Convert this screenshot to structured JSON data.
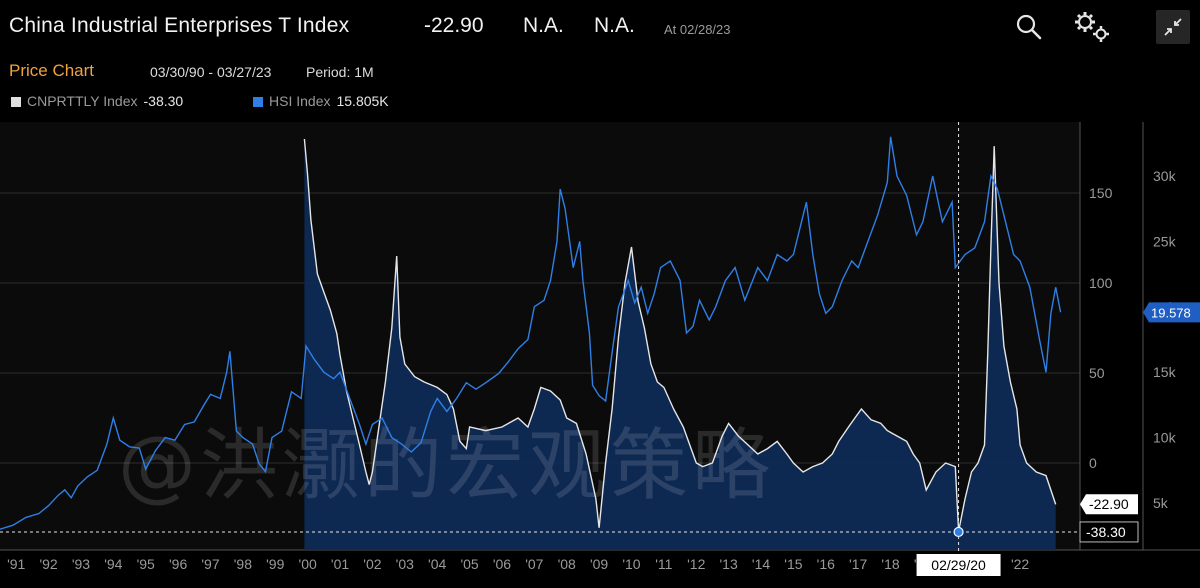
{
  "header": {
    "title": "China Industrial Enterprises T Index",
    "last_value": "-22.90",
    "net_change": "N.A.",
    "pct_change": "N.A.",
    "as_of": "At 02/28/23"
  },
  "subheader": {
    "chart_name": "Price Chart",
    "date_range": "03/30/90 - 03/27/23",
    "period": "Period: 1M"
  },
  "legend": [
    {
      "name": "CNPRTTLY Index",
      "value": "-38.30",
      "color": "#e0e0e0"
    },
    {
      "name": "HSI Index",
      "value": "15.805K",
      "color": "#2f7fe6"
    }
  ],
  "watermark": "@洪灏的宏观策略",
  "chart_data": {
    "type": "line",
    "x_tick_labels": [
      "'91",
      "'92",
      "'93",
      "'94",
      "'95",
      "'96",
      "'97",
      "'98",
      "'99",
      "'00",
      "'01",
      "'02",
      "'03",
      "'04",
      "'05",
      "'06",
      "'07",
      "'08",
      "'09",
      "'10",
      "'11",
      "'12",
      "'13",
      "'14",
      "'15",
      "'16",
      "'17",
      "'18",
      "'19",
      "'20",
      "'21",
      "'22"
    ],
    "crosshair_label": "02/29/20",
    "left_axis": {
      "ticks": [
        "150",
        "100",
        "50",
        "0"
      ],
      "range": [
        -38,
        180
      ]
    },
    "right_axis": {
      "ticks": [
        "30k",
        "25k",
        "20k",
        "15k",
        "10k",
        "5k"
      ],
      "range": [
        2000,
        33500
      ]
    },
    "markers": {
      "cnprttly_last": "-22.90",
      "cnprttly_cursor": "-38.30",
      "hsi_last": "19.578"
    },
    "series": [
      {
        "name": "CNPRTTLY Index",
        "axis": "left",
        "color": "#e6e6e6",
        "fill": "#0e2a55",
        "points": [
          [
            1999.9,
            180
          ],
          [
            2000.0,
            160
          ],
          [
            2000.1,
            135
          ],
          [
            2000.3,
            105
          ],
          [
            2000.5,
            95
          ],
          [
            2000.7,
            85
          ],
          [
            2000.9,
            72
          ],
          [
            2001.0,
            60
          ],
          [
            2001.2,
            40
          ],
          [
            2001.4,
            25
          ],
          [
            2001.6,
            10
          ],
          [
            2001.8,
            -5
          ],
          [
            2001.9,
            -12
          ],
          [
            2002.0,
            -5
          ],
          [
            2002.2,
            20
          ],
          [
            2002.4,
            45
          ],
          [
            2002.6,
            75
          ],
          [
            2002.75,
            115
          ],
          [
            2002.85,
            70
          ],
          [
            2003.0,
            55
          ],
          [
            2003.3,
            48
          ],
          [
            2003.6,
            45
          ],
          [
            2004.0,
            42
          ],
          [
            2004.3,
            38
          ],
          [
            2004.5,
            30
          ],
          [
            2004.7,
            12
          ],
          [
            2004.9,
            8
          ],
          [
            2005.0,
            20
          ],
          [
            2005.5,
            18
          ],
          [
            2006.0,
            20
          ],
          [
            2006.5,
            25
          ],
          [
            2006.8,
            20
          ],
          [
            2007.0,
            30
          ],
          [
            2007.2,
            42
          ],
          [
            2007.5,
            40
          ],
          [
            2007.8,
            35
          ],
          [
            2008.0,
            25
          ],
          [
            2008.3,
            22
          ],
          [
            2008.6,
            5
          ],
          [
            2008.9,
            -20
          ],
          [
            2009.0,
            -36
          ],
          [
            2009.2,
            0
          ],
          [
            2009.4,
            30
          ],
          [
            2009.6,
            70
          ],
          [
            2009.8,
            100
          ],
          [
            2010.0,
            120
          ],
          [
            2010.2,
            90
          ],
          [
            2010.4,
            75
          ],
          [
            2010.6,
            55
          ],
          [
            2010.8,
            45
          ],
          [
            2011.0,
            42
          ],
          [
            2011.3,
            30
          ],
          [
            2011.6,
            20
          ],
          [
            2011.8,
            10
          ],
          [
            2012.0,
            0
          ],
          [
            2012.2,
            -2
          ],
          [
            2012.5,
            0
          ],
          [
            2012.8,
            15
          ],
          [
            2013.0,
            22
          ],
          [
            2013.3,
            15
          ],
          [
            2013.6,
            10
          ],
          [
            2013.9,
            5
          ],
          [
            2014.2,
            8
          ],
          [
            2014.5,
            12
          ],
          [
            2014.8,
            5
          ],
          [
            2015.0,
            0
          ],
          [
            2015.3,
            -5
          ],
          [
            2015.6,
            -2
          ],
          [
            2015.9,
            0
          ],
          [
            2016.2,
            5
          ],
          [
            2016.4,
            12
          ],
          [
            2016.7,
            20
          ],
          [
            2016.9,
            25
          ],
          [
            2017.1,
            30
          ],
          [
            2017.4,
            24
          ],
          [
            2017.7,
            22
          ],
          [
            2017.9,
            18
          ],
          [
            2018.2,
            15
          ],
          [
            2018.5,
            12
          ],
          [
            2018.7,
            5
          ],
          [
            2018.9,
            0
          ],
          [
            2019.1,
            -15
          ],
          [
            2019.4,
            -5
          ],
          [
            2019.7,
            0
          ],
          [
            2020.0,
            -2
          ],
          [
            2020.1,
            -38
          ],
          [
            2020.3,
            -20
          ],
          [
            2020.5,
            -5
          ],
          [
            2020.7,
            0
          ],
          [
            2020.9,
            10
          ],
          [
            2021.0,
            60
          ],
          [
            2021.1,
            120
          ],
          [
            2021.2,
            176
          ],
          [
            2021.35,
            100
          ],
          [
            2021.5,
            65
          ],
          [
            2021.7,
            45
          ],
          [
            2021.9,
            30
          ],
          [
            2022.0,
            10
          ],
          [
            2022.2,
            0
          ],
          [
            2022.5,
            -5
          ],
          [
            2022.8,
            -7
          ],
          [
            2023.1,
            -23
          ]
        ]
      },
      {
        "name": "HSI Index",
        "axis": "right",
        "color": "#2f7fe6",
        "points": [
          [
            1990.0,
            3100
          ],
          [
            1990.5,
            3000
          ],
          [
            1990.9,
            3300
          ],
          [
            1991.3,
            3900
          ],
          [
            1991.7,
            4200
          ],
          [
            1992.0,
            4800
          ],
          [
            1992.3,
            5600
          ],
          [
            1992.5,
            6000
          ],
          [
            1992.7,
            5400
          ],
          [
            1992.9,
            6300
          ],
          [
            1993.2,
            7000
          ],
          [
            1993.5,
            7500
          ],
          [
            1993.8,
            9500
          ],
          [
            1994.0,
            11500
          ],
          [
            1994.2,
            9800
          ],
          [
            1994.5,
            9300
          ],
          [
            1994.8,
            9200
          ],
          [
            1995.0,
            7600
          ],
          [
            1995.3,
            9000
          ],
          [
            1995.6,
            10000
          ],
          [
            1995.9,
            9800
          ],
          [
            1996.2,
            11000
          ],
          [
            1996.5,
            11200
          ],
          [
            1996.8,
            12500
          ],
          [
            1997.0,
            13300
          ],
          [
            1997.3,
            13000
          ],
          [
            1997.5,
            15000
          ],
          [
            1997.6,
            16600
          ],
          [
            1997.8,
            10500
          ],
          [
            1998.0,
            10000
          ],
          [
            1998.3,
            9500
          ],
          [
            1998.5,
            8000
          ],
          [
            1998.7,
            7400
          ],
          [
            1998.9,
            10000
          ],
          [
            1999.2,
            10500
          ],
          [
            1999.5,
            13500
          ],
          [
            1999.8,
            13000
          ],
          [
            1999.95,
            17000
          ],
          [
            2000.2,
            16000
          ],
          [
            2000.5,
            15000
          ],
          [
            2000.8,
            14500
          ],
          [
            2001.0,
            15000
          ],
          [
            2001.3,
            13000
          ],
          [
            2001.6,
            11000
          ],
          [
            2001.8,
            9500
          ],
          [
            2002.0,
            11000
          ],
          [
            2002.3,
            11500
          ],
          [
            2002.6,
            10000
          ],
          [
            2002.9,
            9500
          ],
          [
            2003.2,
            8900
          ],
          [
            2003.5,
            9600
          ],
          [
            2003.8,
            12000
          ],
          [
            2004.0,
            13000
          ],
          [
            2004.3,
            12000
          ],
          [
            2004.6,
            13000
          ],
          [
            2004.9,
            14200
          ],
          [
            2005.2,
            13700
          ],
          [
            2005.5,
            14200
          ],
          [
            2005.9,
            14900
          ],
          [
            2006.2,
            15800
          ],
          [
            2006.5,
            16800
          ],
          [
            2006.8,
            17500
          ],
          [
            2007.0,
            20000
          ],
          [
            2007.3,
            20500
          ],
          [
            2007.5,
            22000
          ],
          [
            2007.7,
            25000
          ],
          [
            2007.8,
            29000
          ],
          [
            2007.95,
            27500
          ],
          [
            2008.2,
            23000
          ],
          [
            2008.4,
            25000
          ],
          [
            2008.5,
            22000
          ],
          [
            2008.7,
            18000
          ],
          [
            2008.8,
            14000
          ],
          [
            2009.0,
            13200
          ],
          [
            2009.2,
            12800
          ],
          [
            2009.4,
            16500
          ],
          [
            2009.6,
            20000
          ],
          [
            2009.9,
            22000
          ],
          [
            2010.1,
            20300
          ],
          [
            2010.3,
            21500
          ],
          [
            2010.5,
            19500
          ],
          [
            2010.7,
            21000
          ],
          [
            2010.9,
            23000
          ],
          [
            2011.2,
            23500
          ],
          [
            2011.5,
            22000
          ],
          [
            2011.7,
            18000
          ],
          [
            2011.9,
            18500
          ],
          [
            2012.1,
            20500
          ],
          [
            2012.4,
            19000
          ],
          [
            2012.6,
            20000
          ],
          [
            2012.9,
            22000
          ],
          [
            2013.2,
            23000
          ],
          [
            2013.5,
            20500
          ],
          [
            2013.9,
            23000
          ],
          [
            2014.2,
            22000
          ],
          [
            2014.5,
            24000
          ],
          [
            2014.8,
            23500
          ],
          [
            2015.0,
            24000
          ],
          [
            2015.2,
            26000
          ],
          [
            2015.4,
            28000
          ],
          [
            2015.6,
            24000
          ],
          [
            2015.8,
            21000
          ],
          [
            2016.0,
            19500
          ],
          [
            2016.2,
            20000
          ],
          [
            2016.5,
            22000
          ],
          [
            2016.8,
            23500
          ],
          [
            2017.0,
            23000
          ],
          [
            2017.3,
            25000
          ],
          [
            2017.6,
            27000
          ],
          [
            2017.9,
            29500
          ],
          [
            2018.0,
            33000
          ],
          [
            2018.2,
            30000
          ],
          [
            2018.5,
            28500
          ],
          [
            2018.8,
            25500
          ],
          [
            2019.0,
            26500
          ],
          [
            2019.3,
            30000
          ],
          [
            2019.6,
            26500
          ],
          [
            2019.9,
            28000
          ],
          [
            2020.0,
            23000
          ],
          [
            2020.3,
            24000
          ],
          [
            2020.6,
            24500
          ],
          [
            2020.9,
            26500
          ],
          [
            2021.1,
            30000
          ],
          [
            2021.3,
            29000
          ],
          [
            2021.5,
            27000
          ],
          [
            2021.8,
            24000
          ],
          [
            2022.0,
            23500
          ],
          [
            2022.3,
            21500
          ],
          [
            2022.6,
            17500
          ],
          [
            2022.8,
            15000
          ],
          [
            2022.95,
            19500
          ],
          [
            2023.1,
            21500
          ],
          [
            2023.25,
            19578
          ]
        ]
      }
    ]
  }
}
